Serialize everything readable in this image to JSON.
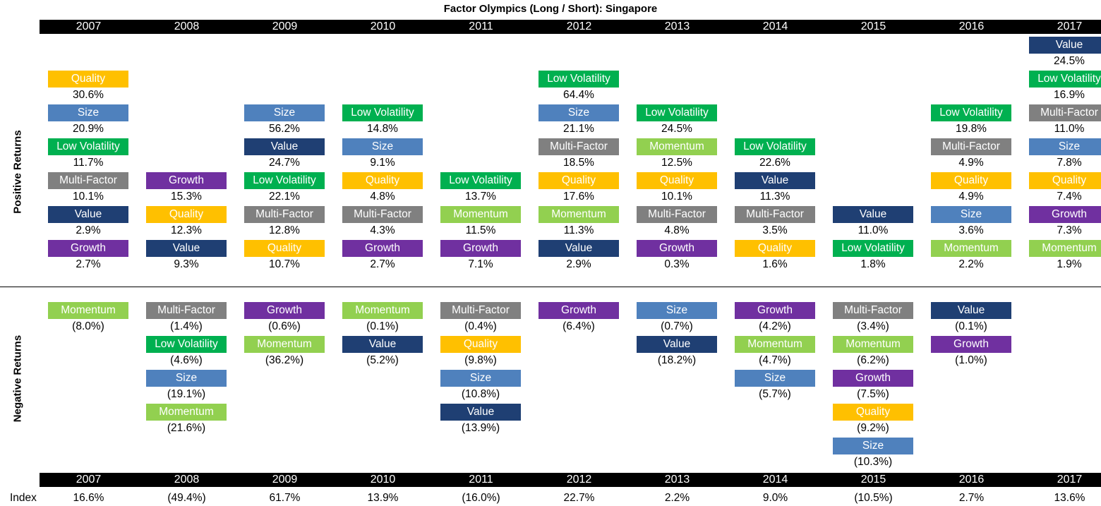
{
  "title": "Factor Olympics (Long / Short): Singapore",
  "side_labels": {
    "positive": "Positive  Returns",
    "negative": "Negative  Returns"
  },
  "index_label": "Index",
  "factor_colors": {
    "Quality": "#FFC000",
    "Size": "#4F81BD",
    "Low Volatility": "#00B050",
    "Multi-Factor": "#808080",
    "Value": "#1F3F73",
    "Growth": "#7030A0",
    "Momentum": "#92D050"
  },
  "chart_data": {
    "type": "table",
    "years": [
      "2007",
      "2008",
      "2009",
      "2010",
      "2011",
      "2012",
      "2013",
      "2014",
      "2015",
      "2016",
      "2017"
    ],
    "index": [
      "16.6%",
      "(49.4%)",
      "61.7%",
      "13.9%",
      "(16.0%)",
      "22.7%",
      "2.2%",
      "9.0%",
      "(10.5%)",
      "2.7%",
      "13.6%"
    ],
    "positive": [
      [
        [
          "Quality",
          "30.6%"
        ],
        [
          "Size",
          "20.9%"
        ],
        [
          "Low Volatility",
          "11.7%"
        ],
        [
          "Multi-Factor",
          "10.1%"
        ],
        [
          "Value",
          "2.9%"
        ],
        [
          "Growth",
          "2.7%"
        ]
      ],
      [
        [
          "Growth",
          "15.3%"
        ],
        [
          "Quality",
          "12.3%"
        ],
        [
          "Value",
          "9.3%"
        ]
      ],
      [
        [
          "Size",
          "56.2%"
        ],
        [
          "Value",
          "24.7%"
        ],
        [
          "Low Volatility",
          "22.1%"
        ],
        [
          "Multi-Factor",
          "12.8%"
        ],
        [
          "Quality",
          "10.7%"
        ]
      ],
      [
        [
          "Low Volatility",
          "14.8%"
        ],
        [
          "Size",
          "9.1%"
        ],
        [
          "Quality",
          "4.8%"
        ],
        [
          "Multi-Factor",
          "4.3%"
        ],
        [
          "Growth",
          "2.7%"
        ]
      ],
      [
        [
          "Low Volatility",
          "13.7%"
        ],
        [
          "Momentum",
          "11.5%"
        ],
        [
          "Growth",
          "7.1%"
        ]
      ],
      [
        [
          "Low Volatility",
          "64.4%"
        ],
        [
          "Size",
          "21.1%"
        ],
        [
          "Multi-Factor",
          "18.5%"
        ],
        [
          "Quality",
          "17.6%"
        ],
        [
          "Momentum",
          "11.3%"
        ],
        [
          "Value",
          "2.9%"
        ]
      ],
      [
        [
          "Low Volatility",
          "24.5%"
        ],
        [
          "Momentum",
          "12.5%"
        ],
        [
          "Quality",
          "10.1%"
        ],
        [
          "Multi-Factor",
          "4.8%"
        ],
        [
          "Growth",
          "0.3%"
        ]
      ],
      [
        [
          "Low Volatility",
          "22.6%"
        ],
        [
          "Value",
          "11.3%"
        ],
        [
          "Multi-Factor",
          "3.5%"
        ],
        [
          "Quality",
          "1.6%"
        ]
      ],
      [
        [
          "Value",
          "11.0%"
        ],
        [
          "Low Volatility",
          "1.8%"
        ]
      ],
      [
        [
          "Low Volatility",
          "19.8%"
        ],
        [
          "Multi-Factor",
          "4.9%"
        ],
        [
          "Quality",
          "4.9%"
        ],
        [
          "Size",
          "3.6%"
        ],
        [
          "Momentum",
          "2.2%"
        ]
      ],
      [
        [
          "Value",
          "24.5%"
        ],
        [
          "Low Volatility",
          "16.9%"
        ],
        [
          "Multi-Factor",
          "11.0%"
        ],
        [
          "Size",
          "7.8%"
        ],
        [
          "Quality",
          "7.4%"
        ],
        [
          "Growth",
          "7.3%"
        ],
        [
          "Momentum",
          "1.9%"
        ]
      ]
    ],
    "negative": [
      [
        [
          "Momentum",
          "(8.0%)"
        ]
      ],
      [
        [
          "Multi-Factor",
          "(1.4%)"
        ],
        [
          "Low Volatility",
          "(4.6%)"
        ],
        [
          "Size",
          "(19.1%)"
        ],
        [
          "Momentum",
          "(21.6%)"
        ]
      ],
      [
        [
          "Growth",
          "(0.6%)"
        ],
        [
          "Momentum",
          "(36.2%)"
        ]
      ],
      [
        [
          "Momentum",
          "(0.1%)"
        ],
        [
          "Value",
          "(5.2%)"
        ]
      ],
      [
        [
          "Multi-Factor",
          "(0.4%)"
        ],
        [
          "Quality",
          "(9.8%)"
        ],
        [
          "Size",
          "(10.8%)"
        ],
        [
          "Value",
          "(13.9%)"
        ]
      ],
      [
        [
          "Growth",
          "(6.4%)"
        ]
      ],
      [
        [
          "Size",
          "(0.7%)"
        ],
        [
          "Value",
          "(18.2%)"
        ]
      ],
      [
        [
          "Growth",
          "(4.2%)"
        ],
        [
          "Momentum",
          "(4.7%)"
        ],
        [
          "Size",
          "(5.7%)"
        ]
      ],
      [
        [
          "Multi-Factor",
          "(3.4%)"
        ],
        [
          "Momentum",
          "(6.2%)"
        ],
        [
          "Growth",
          "(7.5%)"
        ],
        [
          "Quality",
          "(9.2%)"
        ],
        [
          "Size",
          "(10.3%)"
        ]
      ],
      [
        [
          "Value",
          "(0.1%)"
        ],
        [
          "Growth",
          "(1.0%)"
        ]
      ],
      []
    ]
  }
}
